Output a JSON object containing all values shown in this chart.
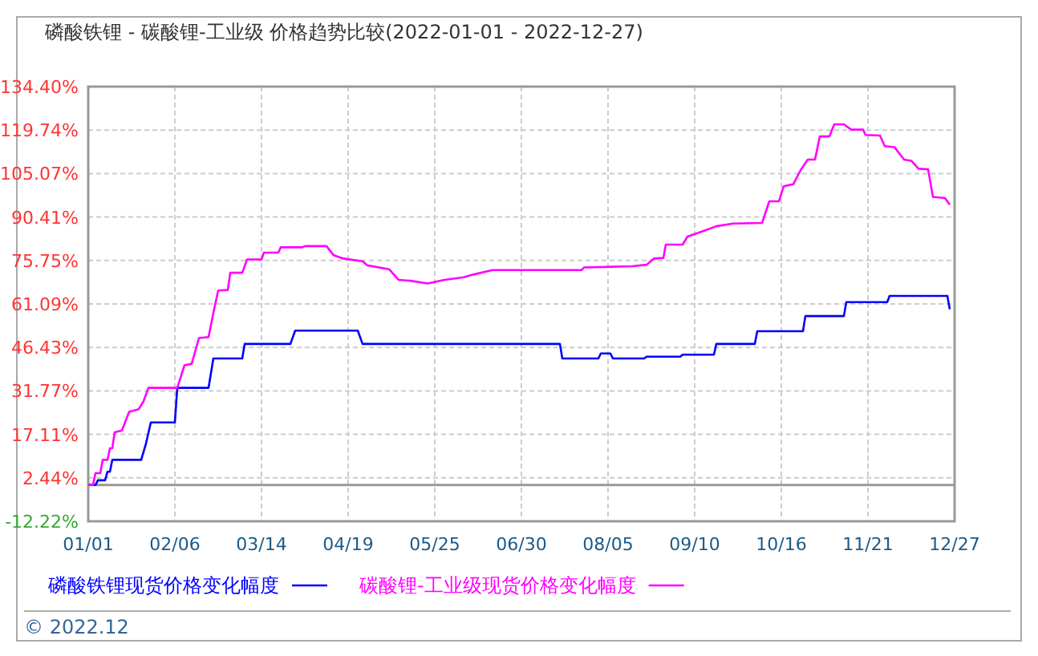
{
  "chart_data": {
    "type": "line",
    "title": "磷酸铁锂 - 碳酸锂-工业级 价格趋势比较(2022-01-01 - 2022-12-27)",
    "xlim": [
      "2022-01-01",
      "2022-12-27"
    ],
    "xticks": [
      {
        "value": "2022-01-01",
        "label": "01/01"
      },
      {
        "value": "2022-02-06",
        "label": "02/06"
      },
      {
        "value": "2022-03-14",
        "label": "03/14"
      },
      {
        "value": "2022-04-19",
        "label": "04/19"
      },
      {
        "value": "2022-05-25",
        "label": "05/25"
      },
      {
        "value": "2022-06-30",
        "label": "06/30"
      },
      {
        "value": "2022-08-05",
        "label": "08/05"
      },
      {
        "value": "2022-09-10",
        "label": "09/10"
      },
      {
        "value": "2022-10-16",
        "label": "10/16"
      },
      {
        "value": "2022-11-21",
        "label": "11/21"
      },
      {
        "value": "2022-12-27",
        "label": "12/27"
      }
    ],
    "ylim": [
      -12.22,
      134.4
    ],
    "yticks": [
      {
        "value": -12.22,
        "label": "-12.22%"
      },
      {
        "value": 2.44,
        "label": "2.44%"
      },
      {
        "value": 17.11,
        "label": "17.11%"
      },
      {
        "value": 31.77,
        "label": "31.77%"
      },
      {
        "value": 46.43,
        "label": "46.43%"
      },
      {
        "value": 61.09,
        "label": "61.09%"
      },
      {
        "value": 75.75,
        "label": "75.75%"
      },
      {
        "value": 90.41,
        "label": "90.41%"
      },
      {
        "value": 105.07,
        "label": "105.07%"
      },
      {
        "value": 119.74,
        "label": "119.74%"
      },
      {
        "value": 134.4,
        "label": "134.40%"
      }
    ],
    "grid": true,
    "legend": "bottom",
    "ref_lines": [
      {
        "axis": "y",
        "value": 0,
        "color": "#999999"
      }
    ],
    "annotations": [
      "© 2022.12"
    ],
    "series": [
      {
        "name": "磷酸铁锂现货价格变化幅度",
        "color": "#0000ff",
        "x": [
          "2022-01-01",
          "2022-01-04",
          "2022-01-05",
          "2022-01-08",
          "2022-01-09",
          "2022-01-10",
          "2022-01-11",
          "2022-01-23",
          "2022-01-25",
          "2022-01-27",
          "2022-02-06",
          "2022-02-07",
          "2022-02-20",
          "2022-02-22",
          "2022-03-06",
          "2022-03-07",
          "2022-03-26",
          "2022-03-28",
          "2022-04-23",
          "2022-04-25",
          "2022-07-16",
          "2022-07-17",
          "2022-08-01",
          "2022-08-02",
          "2022-08-06",
          "2022-08-07",
          "2022-08-20",
          "2022-08-21",
          "2022-09-04",
          "2022-09-05",
          "2022-09-18",
          "2022-09-19",
          "2022-10-05",
          "2022-10-06",
          "2022-10-25",
          "2022-10-26",
          "2022-11-11",
          "2022-11-12",
          "2022-11-29",
          "2022-11-30",
          "2022-12-24",
          "2022-12-25"
        ],
        "values": [
          0,
          0,
          1.6,
          1.6,
          4.5,
          4.5,
          8.5,
          8.5,
          14,
          21.1,
          21.1,
          32.8,
          32.8,
          42.7,
          42.7,
          47.6,
          47.6,
          52.1,
          52.1,
          47.6,
          47.6,
          42.7,
          42.7,
          44.4,
          44.4,
          42.7,
          42.7,
          43.3,
          43.3,
          44.0,
          44.0,
          47.6,
          47.6,
          51.9,
          51.9,
          57.0,
          57.0,
          61.7,
          61.7,
          63.8,
          63.8,
          59.3
        ]
      },
      {
        "name": "碳酸锂-工业级现货价格变化幅度",
        "color": "#ff00ff",
        "x": [
          "2022-01-01",
          "2022-01-03",
          "2022-01-04",
          "2022-01-06",
          "2022-01-07",
          "2022-01-09",
          "2022-01-10",
          "2022-01-11",
          "2022-01-12",
          "2022-01-15",
          "2022-01-18",
          "2022-01-22",
          "2022-01-24",
          "2022-01-26",
          "2022-02-07",
          "2022-02-10",
          "2022-02-13",
          "2022-02-16",
          "2022-02-20",
          "2022-02-22",
          "2022-02-24",
          "2022-02-28",
          "2022-03-01",
          "2022-03-06",
          "2022-03-08",
          "2022-03-14",
          "2022-03-15",
          "2022-03-21",
          "2022-03-22",
          "2022-03-31",
          "2022-04-01",
          "2022-04-10",
          "2022-04-13",
          "2022-04-17",
          "2022-04-25",
          "2022-04-27",
          "2022-05-06",
          "2022-05-10",
          "2022-05-15",
          "2022-05-22",
          "2022-05-29",
          "2022-06-06",
          "2022-06-10",
          "2022-06-18",
          "2022-07-25",
          "2022-07-26",
          "2022-08-15",
          "2022-08-21",
          "2022-08-24",
          "2022-08-28",
          "2022-08-29",
          "2022-09-05",
          "2022-09-07",
          "2022-09-13",
          "2022-09-19",
          "2022-09-26",
          "2022-10-08",
          "2022-10-11",
          "2022-10-15",
          "2022-10-17",
          "2022-10-21",
          "2022-10-24",
          "2022-10-27",
          "2022-10-30",
          "2022-11-01",
          "2022-11-05",
          "2022-11-07",
          "2022-11-11",
          "2022-11-14",
          "2022-11-19",
          "2022-11-20",
          "2022-11-26",
          "2022-11-28",
          "2022-12-02",
          "2022-12-06",
          "2022-12-09",
          "2022-12-12",
          "2022-12-16",
          "2022-12-18",
          "2022-12-23",
          "2022-12-25"
        ],
        "values": [
          0,
          0,
          4.0,
          4.0,
          8.5,
          8.5,
          12.4,
          12.4,
          17.8,
          18.4,
          24.7,
          25.6,
          28.3,
          32.8,
          32.8,
          40.4,
          40.9,
          49.6,
          49.9,
          58.1,
          65.6,
          65.8,
          71.6,
          71.6,
          76.1,
          76.1,
          78.4,
          78.4,
          80.2,
          80.2,
          80.6,
          80.6,
          77.5,
          76.4,
          75.5,
          74.1,
          72.8,
          69.2,
          68.9,
          68.0,
          69.2,
          70.1,
          71.0,
          72.5,
          72.5,
          73.4,
          73.8,
          74.3,
          76.4,
          76.6,
          81.1,
          81.1,
          83.8,
          85.5,
          87.3,
          88.2,
          88.4,
          95.7,
          95.7,
          100.8,
          101.5,
          106.2,
          109.8,
          109.8,
          117.6,
          117.6,
          121.7,
          121.7,
          119.9,
          119.9,
          118.1,
          117.9,
          114.3,
          114.0,
          109.8,
          109.4,
          106.7,
          106.5,
          97.2,
          96.8,
          94.6
        ]
      }
    ]
  }
}
